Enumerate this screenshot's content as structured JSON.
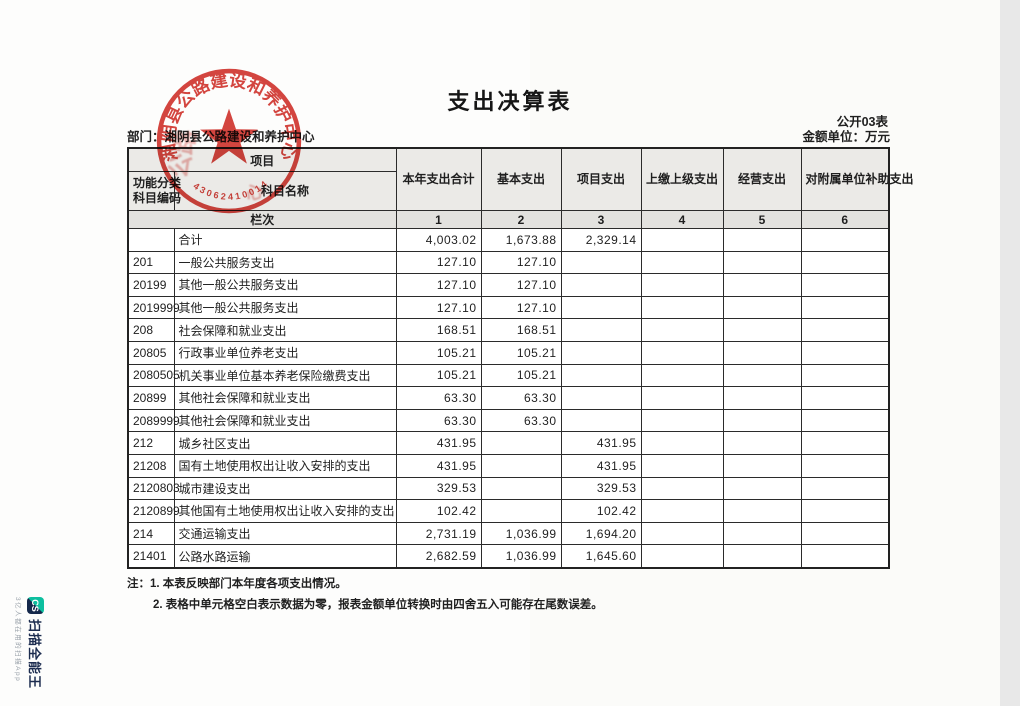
{
  "page": {
    "title": "支出决算表",
    "form_code": "公开03表",
    "department_line": "部门：湘阴县公路建设和养护中心",
    "unit_line": "金额单位：万元",
    "note1": "注：1. 本表反映部门本年度各项支出情况。",
    "note2": "2. 表格中单元格空白表示数据为零，报表金额单位转换时由四舍五入可能存在尾数误差。"
  },
  "stamp": {
    "org_name": "湘阴县公路建设和养护中心",
    "number": "43062410014798",
    "color": "#cf2b24"
  },
  "watermark": {
    "logo_text": "CS",
    "app_name": "扫描全能王",
    "tagline": "3亿人都在用的扫描App",
    "teal": "#0dbf9f",
    "navy": "#15284b"
  },
  "table": {
    "header": {
      "project": "项目",
      "code_line1": "功能分类",
      "code_line2": "科目编码",
      "subject_name": "科目名称",
      "lanci": "栏次",
      "amount_cols": [
        "本年支出合计",
        "基本支出",
        "项目支出",
        "上缴上级支出",
        "经营支出",
        "对附属单位补助支出"
      ],
      "col_nums": [
        "1",
        "2",
        "3",
        "4",
        "5",
        "6"
      ]
    },
    "rows": [
      {
        "code": "",
        "name": "合计",
        "c1": "4,003.02",
        "c2": "1,673.88",
        "c3": "2,329.14",
        "c4": "",
        "c5": "",
        "c6": ""
      },
      {
        "code": "201",
        "name": "一般公共服务支出",
        "c1": "127.10",
        "c2": "127.10",
        "c3": "",
        "c4": "",
        "c5": "",
        "c6": ""
      },
      {
        "code": "20199",
        "name": "其他一般公共服务支出",
        "c1": "127.10",
        "c2": "127.10",
        "c3": "",
        "c4": "",
        "c5": "",
        "c6": ""
      },
      {
        "code": "2019999",
        "name": "其他一般公共服务支出",
        "c1": "127.10",
        "c2": "127.10",
        "c3": "",
        "c4": "",
        "c5": "",
        "c6": ""
      },
      {
        "code": "208",
        "name": "社会保障和就业支出",
        "c1": "168.51",
        "c2": "168.51",
        "c3": "",
        "c4": "",
        "c5": "",
        "c6": ""
      },
      {
        "code": "20805",
        "name": "行政事业单位养老支出",
        "c1": "105.21",
        "c2": "105.21",
        "c3": "",
        "c4": "",
        "c5": "",
        "c6": ""
      },
      {
        "code": "2080505",
        "name": "机关事业单位基本养老保险缴费支出",
        "c1": "105.21",
        "c2": "105.21",
        "c3": "",
        "c4": "",
        "c5": "",
        "c6": ""
      },
      {
        "code": "20899",
        "name": "其他社会保障和就业支出",
        "c1": "63.30",
        "c2": "63.30",
        "c3": "",
        "c4": "",
        "c5": "",
        "c6": ""
      },
      {
        "code": "2089999",
        "name": "其他社会保障和就业支出",
        "c1": "63.30",
        "c2": "63.30",
        "c3": "",
        "c4": "",
        "c5": "",
        "c6": ""
      },
      {
        "code": "212",
        "name": "城乡社区支出",
        "c1": "431.95",
        "c2": "",
        "c3": "431.95",
        "c4": "",
        "c5": "",
        "c6": ""
      },
      {
        "code": "21208",
        "name": "国有土地使用权出让收入安排的支出",
        "c1": "431.95",
        "c2": "",
        "c3": "431.95",
        "c4": "",
        "c5": "",
        "c6": ""
      },
      {
        "code": "2120803",
        "name": "城市建设支出",
        "c1": "329.53",
        "c2": "",
        "c3": "329.53",
        "c4": "",
        "c5": "",
        "c6": ""
      },
      {
        "code": "2120899",
        "name": "其他国有土地使用权出让收入安排的支出",
        "c1": "102.42",
        "c2": "",
        "c3": "102.42",
        "c4": "",
        "c5": "",
        "c6": ""
      },
      {
        "code": "214",
        "name": "交通运输支出",
        "c1": "2,731.19",
        "c2": "1,036.99",
        "c3": "1,694.20",
        "c4": "",
        "c5": "",
        "c6": ""
      },
      {
        "code": "21401",
        "name": "公路水路运输",
        "c1": "2,682.59",
        "c2": "1,036.99",
        "c3": "1,645.60",
        "c4": "",
        "c5": "",
        "c6": ""
      }
    ]
  }
}
